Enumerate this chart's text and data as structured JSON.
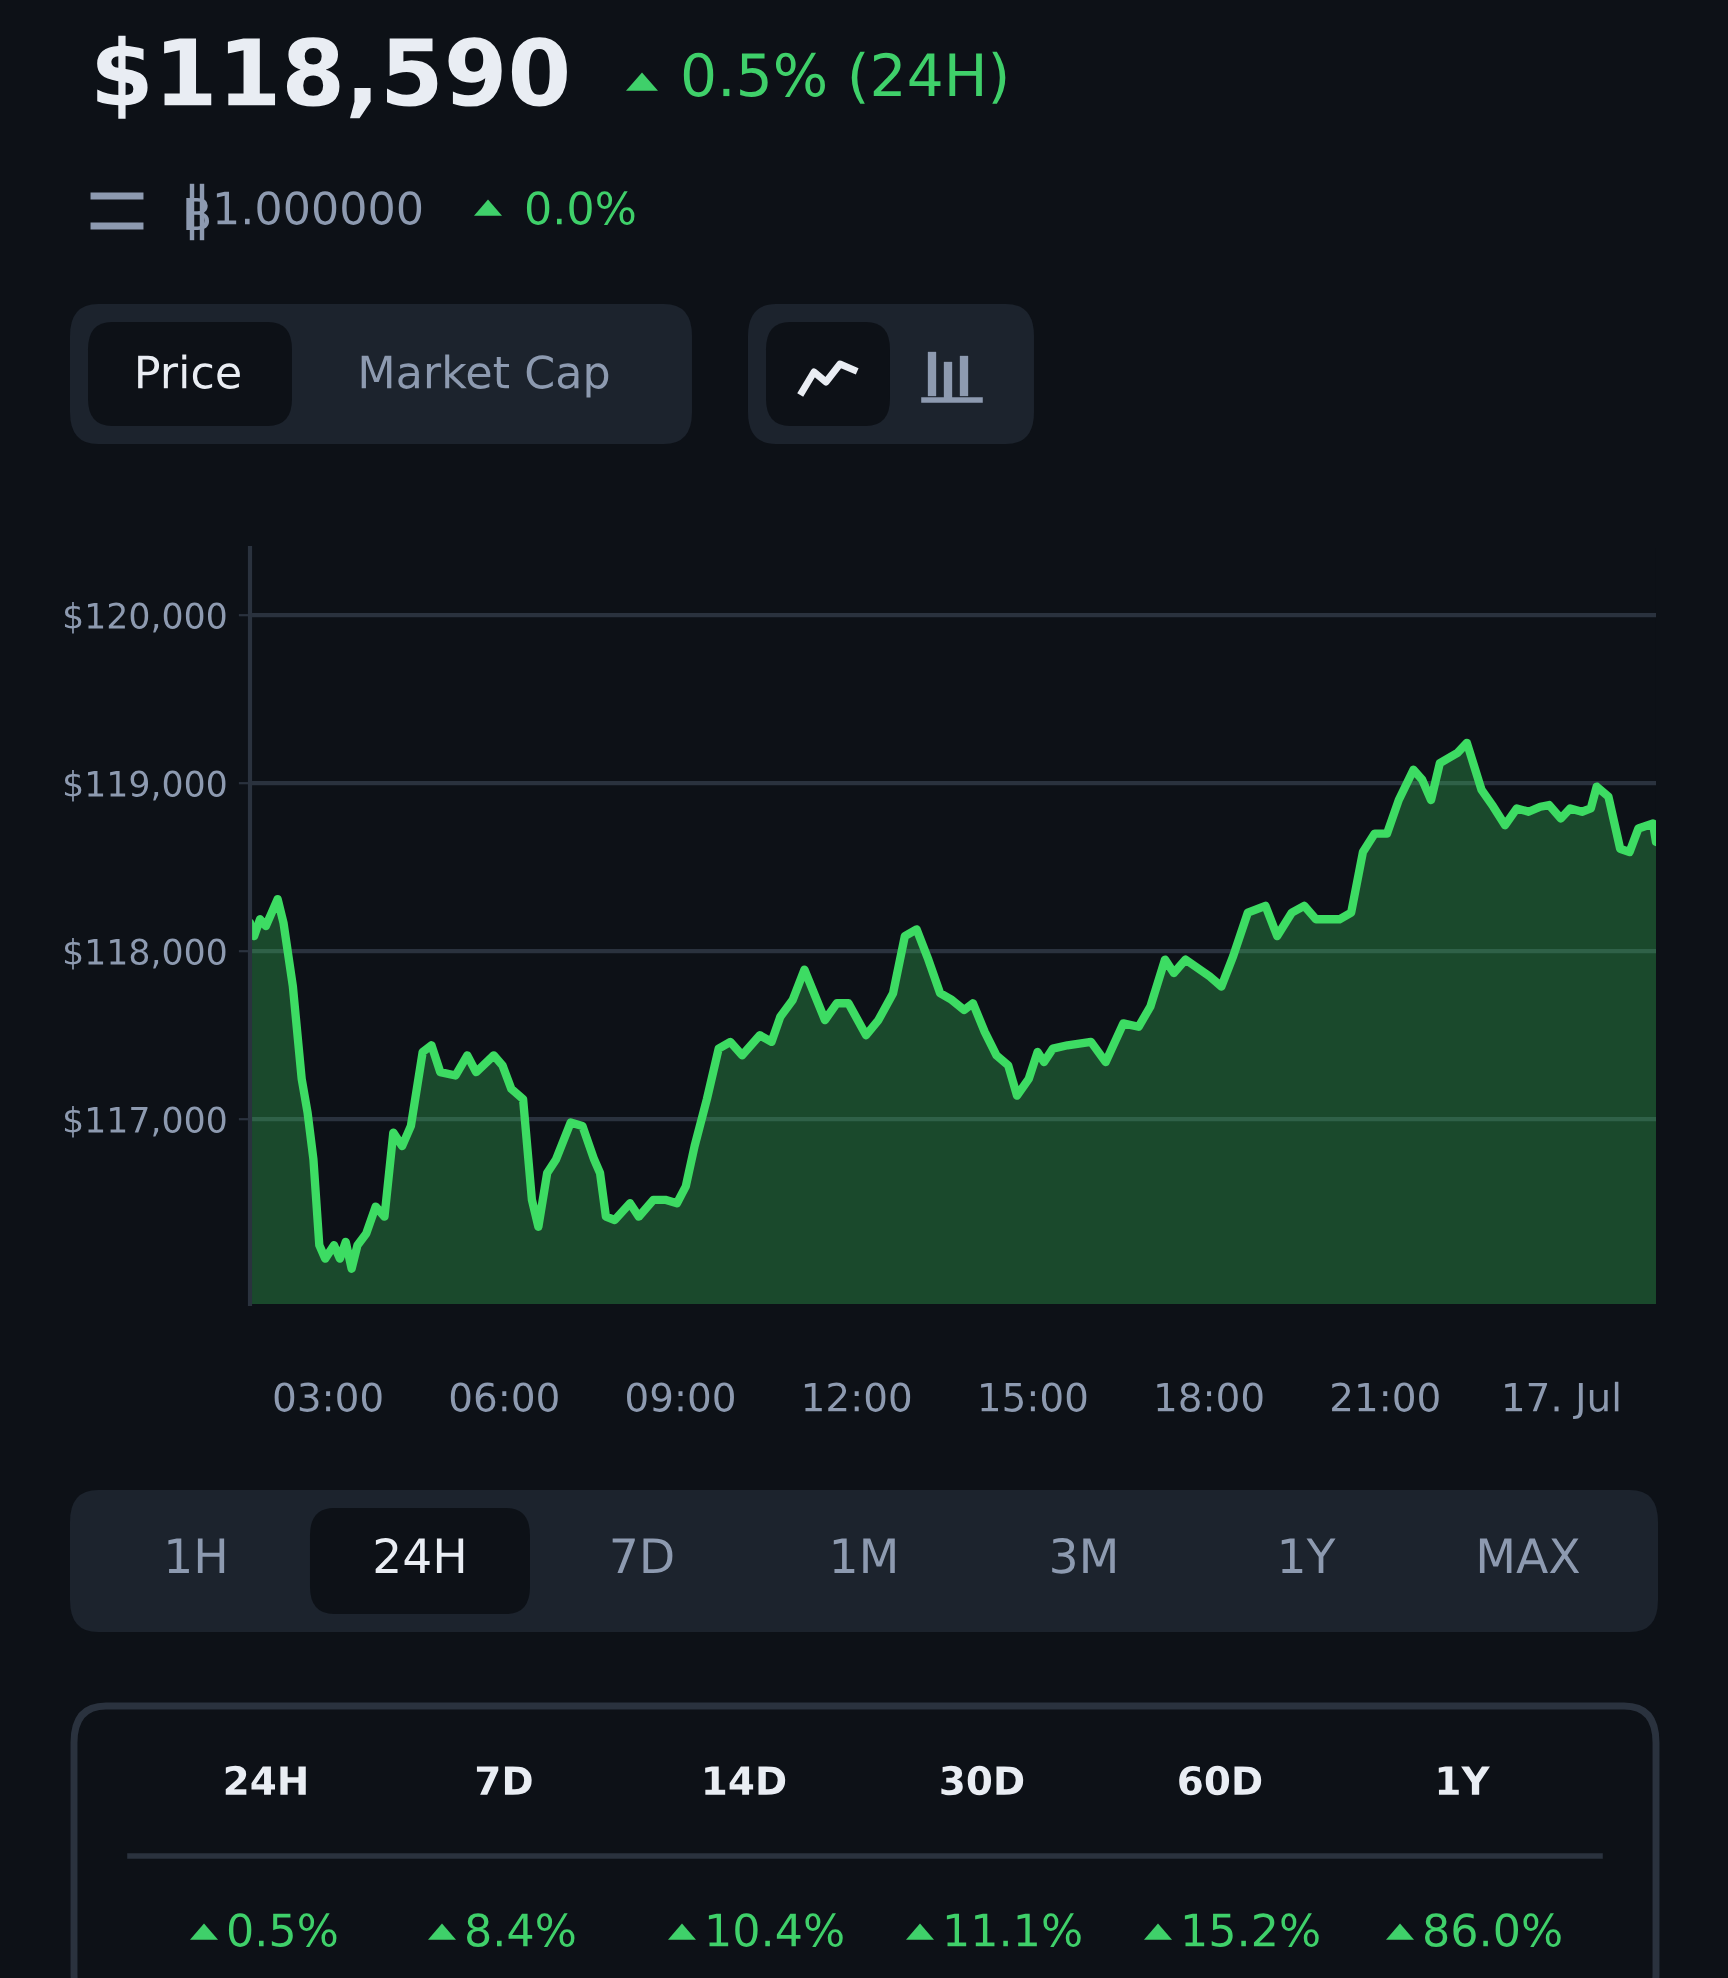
{
  "chart_data": [
    {
      "type": "area",
      "title": "$118,590",
      "annotations": [
        "0.5% (24H)",
        "1.000000",
        "0.0%",
        "Price",
        "Market Cap",
        "1H",
        "24H",
        "7D",
        "1M",
        "3M",
        "1Y",
        "MAX"
      ],
      "x": [
        1.67,
        1.74,
        1.84,
        1.94,
        2.04,
        2.14,
        2.24,
        2.4,
        2.55,
        2.65,
        2.75,
        2.85,
        2.95,
        3.1,
        3.2,
        3.3,
        3.4,
        3.5,
        3.65,
        3.81,
        3.96,
        4.11,
        4.26,
        4.41,
        4.61,
        4.76,
        4.91,
        5.17,
        5.37,
        5.52,
        5.82,
        5.97,
        6.12,
        6.32,
        6.47,
        6.58,
        6.73,
        6.88,
        7.13,
        7.33,
        7.53,
        7.63,
        7.73,
        7.88,
        8.14,
        8.29,
        8.54,
        8.74,
        8.94,
        9.09,
        9.24,
        9.45,
        9.65,
        9.85,
        10.05,
        10.35,
        10.55,
        10.7,
        10.91,
        11.11,
        11.46,
        11.66,
        11.86,
        12.16,
        12.37,
        12.62,
        12.82,
        13.02,
        13.22,
        13.42,
        13.62,
        13.83,
        13.98,
        14.18,
        14.38,
        14.58,
        14.73,
        14.93,
        15.08,
        15.19,
        15.34,
        15.59,
        15.99,
        16.24,
        16.54,
        16.8,
        17.0,
        17.25,
        17.4,
        17.6,
        18.01,
        18.21,
        18.41,
        18.66,
        18.96,
        19.16,
        19.41,
        19.62,
        19.82,
        20.22,
        20.42,
        20.62,
        20.82,
        21.03,
        21.23,
        21.48,
        21.63,
        21.78,
        21.93,
        22.23,
        22.39,
        22.64,
        22.84,
        23.04,
        23.24,
        23.44,
        23.64,
        23.79,
        23.99,
        24.15,
        24.35,
        24.5,
        24.6,
        24.8,
        25.0,
        25.16,
        25.31,
        25.56,
        25.61
      ],
      "series": [
        {
          "color": "#3ddc63",
          "values": [
            118170,
            118090,
            118190,
            118150,
            118230,
            118310,
            118170,
            117790,
            117240,
            117040,
            116760,
            116250,
            116170,
            116250,
            116170,
            116270,
            116110,
            116250,
            116320,
            116480,
            116420,
            116920,
            116840,
            116960,
            117400,
            117440,
            117280,
            117260,
            117380,
            117280,
            117380,
            117320,
            117180,
            117120,
            116520,
            116360,
            116680,
            116760,
            116980,
            116960,
            116760,
            116680,
            116420,
            116400,
            116500,
            116420,
            116520,
            116520,
            116500,
            116600,
            116840,
            117120,
            117420,
            117460,
            117380,
            117500,
            117460,
            117610,
            117710,
            117890,
            117590,
            117690,
            117690,
            117500,
            117590,
            117750,
            118090,
            118130,
            117950,
            117750,
            117710,
            117650,
            117690,
            117520,
            117380,
            117320,
            117140,
            117240,
            117400,
            117340,
            117420,
            117440,
            117460,
            117340,
            117570,
            117550,
            117670,
            117950,
            117870,
            117950,
            117850,
            117790,
            117970,
            118230,
            118270,
            118090,
            118230,
            118270,
            118190,
            118190,
            118230,
            118590,
            118700,
            118700,
            118900,
            119080,
            119020,
            118900,
            119120,
            119180,
            119240,
            118960,
            118860,
            118750,
            118850,
            118830,
            118860,
            118870,
            118790,
            118850,
            118830,
            118850,
            118980,
            118920,
            118610,
            118590,
            118730,
            118760,
            118650
          ]
        }
      ],
      "xlim": [
        1.67,
        25.61
      ],
      "ylim": [
        115900,
        120400
      ],
      "xticks": [
        {
          "value": 3,
          "label": "03:00"
        },
        {
          "value": 6,
          "label": "06:00"
        },
        {
          "value": 9,
          "label": "09:00"
        },
        {
          "value": 12,
          "label": "12:00"
        },
        {
          "value": 15,
          "label": "15:00"
        },
        {
          "value": 18,
          "label": "18:00"
        },
        {
          "value": 21,
          "label": "21:00"
        },
        {
          "value": 24,
          "label": "17. Jul"
        }
      ],
      "yticks": [
        {
          "value": 117000,
          "label": "$117,000"
        },
        {
          "value": 118000,
          "label": "$118,000"
        },
        {
          "value": 119000,
          "label": "$119,000"
        },
        {
          "value": 120000,
          "label": "$120,000"
        }
      ],
      "grid": "y"
    },
    {
      "type": "other",
      "categories": [
        "24H",
        "7D",
        "14D",
        "30D",
        "60D",
        "1Y"
      ],
      "annotations": [
        "0.5%",
        "8.4%",
        "10.4%",
        "11.1%",
        "15.2%",
        "86.0%"
      ]
    }
  ]
}
